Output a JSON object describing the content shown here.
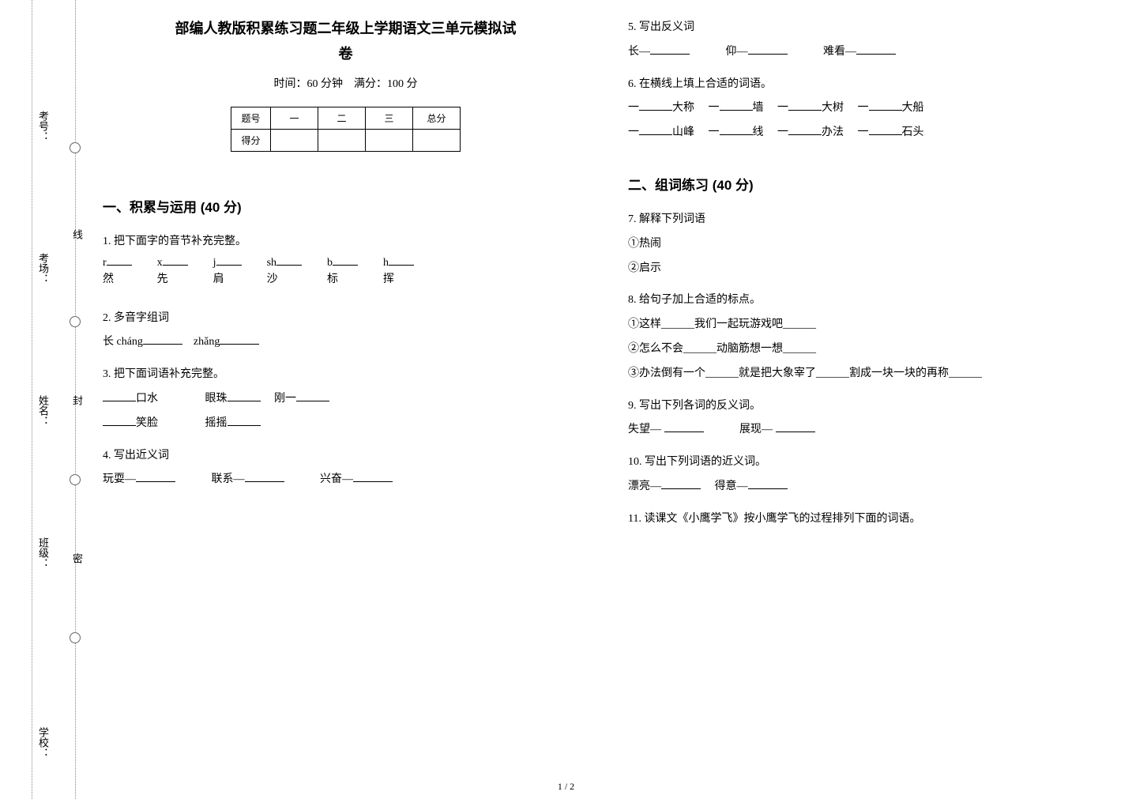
{
  "binding": {
    "labels": [
      "考号：",
      "考场：",
      "姓名：",
      "班级：",
      "学校："
    ],
    "seal_chars": [
      "线",
      "封",
      "密"
    ]
  },
  "header": {
    "title_line1": "部编人教版积累练习题二年级上学期语文三单元模拟试",
    "title_line2": "卷",
    "meta": "时间：60 分钟　满分：100 分"
  },
  "score_table": {
    "row1": [
      "题号",
      "一",
      "二",
      "三",
      "总分"
    ],
    "row2_label": "得分"
  },
  "section1": {
    "heading": "一、积累与运用 (40 分)",
    "q1": {
      "label": "1. 把下面字的音节补充完整。",
      "items": [
        {
          "initial": "r",
          "char": "然"
        },
        {
          "initial": "x",
          "char": "先"
        },
        {
          "initial": "j",
          "char": "肩"
        },
        {
          "initial": "sh",
          "char": "沙"
        },
        {
          "initial": "b",
          "char": "标"
        },
        {
          "initial": "h",
          "char": "挥"
        }
      ]
    },
    "q2": {
      "label": "2. 多音字组词",
      "line": "长 cháng______　zhǎng______"
    },
    "q3": {
      "label": "3. 把下面词语补充完整。",
      "cells": [
        "口水",
        "眼珠",
        "刚一",
        "笑脸",
        "摇摇"
      ]
    },
    "q4": {
      "label": "4. 写出近义词",
      "items": [
        "玩耍—",
        "联系—",
        "兴奋—"
      ]
    },
    "q5": {
      "label": "5. 写出反义词",
      "items": [
        "长—",
        "仰—",
        "难看—"
      ]
    },
    "q6": {
      "label": "6. 在横线上填上合适的词语。",
      "row1": [
        "大称",
        "墙",
        "大树",
        "大船"
      ],
      "row2": [
        "山峰",
        "线",
        "办法",
        "石头"
      ]
    }
  },
  "section2": {
    "heading": "二、组词练习 (40 分)",
    "q7": {
      "label": "7. 解释下列词语",
      "items": [
        "①热闹",
        "②启示"
      ]
    },
    "q8": {
      "label": "8. 给句子加上合适的标点。",
      "lines": [
        "①这样______我们一起玩游戏吧______",
        "②怎么不会______动脑筋想一想______",
        "③办法倒有一个______就是把大象宰了______割成一块一块的再称______"
      ]
    },
    "q9": {
      "label": "9. 写出下列各词的反义词。",
      "items": [
        "失望— ",
        "展现— "
      ]
    },
    "q10": {
      "label": "10. 写出下列词语的近义词。",
      "items": [
        "漂亮—",
        "得意—"
      ]
    },
    "q11": {
      "label": "11. 读课文《小鹰学飞》按小鹰学飞的过程排列下面的词语。"
    }
  },
  "pagenum": "1 / 2",
  "colors": {
    "text": "#000000",
    "bg": "#ffffff",
    "dotted": "#888888"
  }
}
